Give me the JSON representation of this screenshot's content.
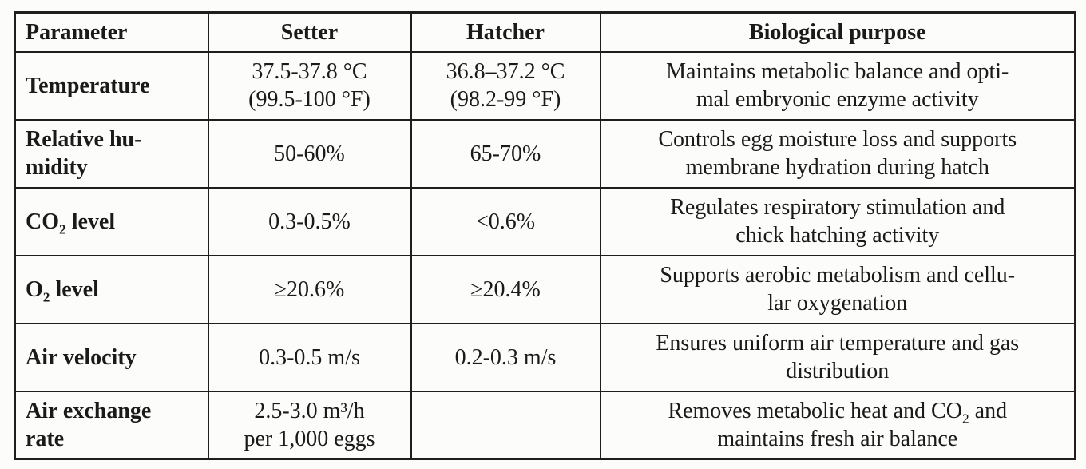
{
  "table": {
    "title_semantic": "incubator-environment-parameters",
    "border_color": "#1e1e1c",
    "background_color": "#fcfcfb",
    "text_color": "#1a1a18",
    "header": [
      "Parameter",
      "Setter",
      "Hatcher",
      "Biological purpose"
    ],
    "column_keys": [
      "parameter",
      "setter",
      "hatcher",
      "purpose"
    ],
    "rows": [
      {
        "key": "temperature",
        "parameter": [
          [
            "Temperature"
          ]
        ],
        "setter": [
          [
            "37.5-37.8 °C"
          ],
          [
            "(99.5-100 °F)"
          ]
        ],
        "hatcher": [
          [
            "36.8–37.2 °C"
          ],
          [
            "(98.2-99 °F)"
          ]
        ],
        "purpose": [
          [
            "Maintains metabolic balance and opti-"
          ],
          [
            "mal embryonic enzyme activity"
          ]
        ]
      },
      {
        "key": "relative-humidity",
        "parameter": [
          [
            "Relative hu-"
          ],
          [
            "midity"
          ]
        ],
        "setter": [
          [
            "50-60%"
          ]
        ],
        "hatcher": [
          [
            "65-70%"
          ]
        ],
        "purpose": [
          [
            "Controls egg moisture loss and supports"
          ],
          [
            "membrane hydration during hatch"
          ]
        ]
      },
      {
        "key": "co2-level",
        "parameter": [
          [
            "CO",
            {
              "t": "2",
              "sub": true
            },
            " level"
          ]
        ],
        "setter": [
          [
            "0.3-0.5%"
          ]
        ],
        "hatcher": [
          [
            "<0.6%"
          ]
        ],
        "purpose": [
          [
            "Regulates respiratory stimulation and"
          ],
          [
            "chick hatching activity"
          ]
        ]
      },
      {
        "key": "o2-level",
        "parameter": [
          [
            "O",
            {
              "t": "2",
              "sub": true
            },
            " level"
          ]
        ],
        "setter": [
          [
            "≥20.6%"
          ]
        ],
        "hatcher": [
          [
            "≥20.4%"
          ]
        ],
        "purpose": [
          [
            "Supports aerobic metabolism and cellu-"
          ],
          [
            "lar oxygenation"
          ]
        ]
      },
      {
        "key": "air-velocity",
        "parameter": [
          [
            "Air velocity"
          ]
        ],
        "setter": [
          [
            "0.3-0.5 m/s"
          ]
        ],
        "hatcher": [
          [
            "0.2-0.3 m/s"
          ]
        ],
        "purpose": [
          [
            "Ensures uniform air temperature and gas"
          ],
          [
            "distribution"
          ]
        ]
      },
      {
        "key": "air-exchange-rate",
        "parameter": [
          [
            "Air exchange"
          ],
          [
            "rate"
          ]
        ],
        "setter": [
          [
            "2.5-3.0 m³/h"
          ],
          [
            "per 1,000 eggs"
          ]
        ],
        "hatcher": [
          [
            ""
          ]
        ],
        "purpose": [
          [
            "Removes metabolic heat and CO",
            {
              "t": "2",
              "sub": true
            },
            " and"
          ],
          [
            "maintains fresh air balance"
          ]
        ]
      }
    ]
  }
}
